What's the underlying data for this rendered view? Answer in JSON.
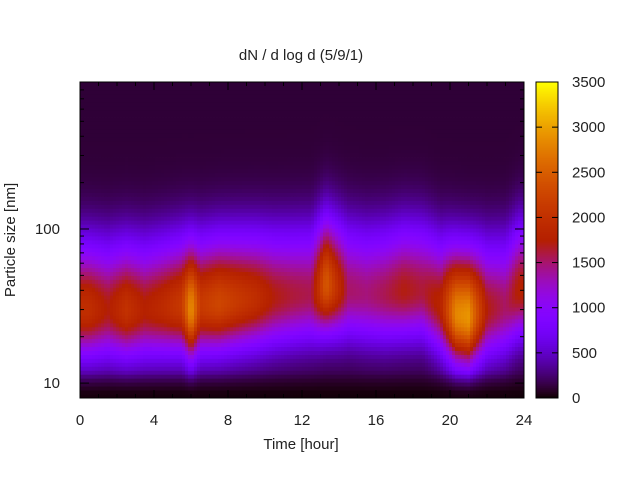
{
  "chart_data": {
    "type": "heatmap",
    "title": "dN / d log d (5/9/1)",
    "xlabel": "Time [hour]",
    "ylabel": "Particle size [nm]",
    "xlim": [
      0,
      24
    ],
    "ylim": [
      8,
      900
    ],
    "y_scale": "log",
    "x_ticks": [
      "0",
      "4",
      "8",
      "12",
      "16",
      "20",
      "24"
    ],
    "y_ticks": [
      "10",
      "100"
    ],
    "colorbar": {
      "range": [
        0,
        3500
      ],
      "ticks": [
        "0",
        "500",
        "1000",
        "1500",
        "2000",
        "2500",
        "3000",
        "3500"
      ],
      "colormap": "gnuplot-rgbformulae-7-5-15"
    },
    "hours": [
      0.5,
      1.5,
      2.5,
      3.5,
      4.5,
      5.5,
      6.0,
      6.5,
      7.5,
      8.5,
      9.5,
      10.5,
      11.5,
      12.5,
      13.3,
      14.5,
      15.5,
      16.5,
      17.5,
      18.5,
      19.5,
      20.3,
      21.0,
      22.0,
      23.0,
      23.7
    ],
    "mode_size_nm": [
      30,
      30,
      30,
      30,
      31,
      32,
      30,
      32,
      33,
      34,
      35,
      36,
      37,
      38,
      44,
      40,
      38,
      38,
      40,
      40,
      32,
      28,
      27,
      30,
      32,
      40
    ],
    "peak_dNdlogd": [
      1850,
      1600,
      1900,
      1650,
      1800,
      2000,
      2800,
      2000,
      2150,
      2000,
      1850,
      1600,
      1500,
      1450,
      2350,
      1400,
      1350,
      1450,
      1600,
      1500,
      1700,
      2700,
      2800,
      1600,
      1400,
      1650
    ]
  }
}
